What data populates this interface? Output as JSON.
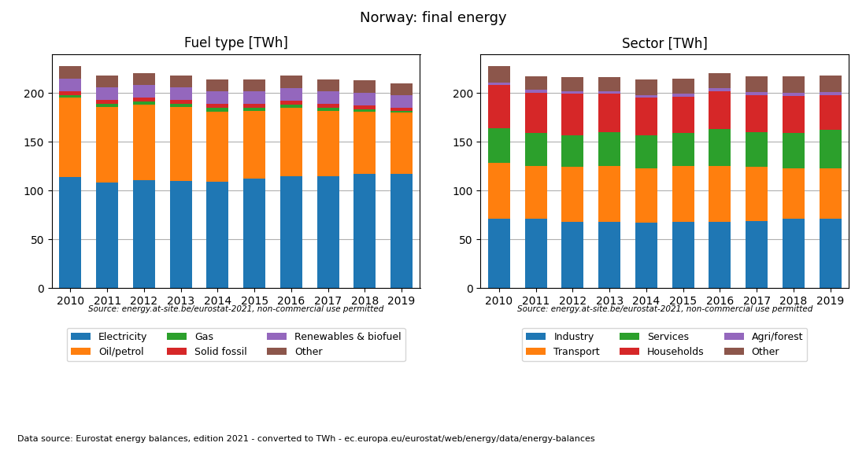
{
  "title": "Norway: final energy",
  "annotations": [
    "Data source: Eurostat energy balances, edition 2021 - converted to TWh - ec.europa.eu/eurostat/web/energy/data/energy-balances"
  ],
  "chart_data": [
    {
      "type": "bar",
      "stacked": true,
      "title": "Fuel type [TWh]",
      "categories": [
        "2010",
        "2011",
        "2012",
        "2013",
        "2014",
        "2015",
        "2016",
        "2017",
        "2018",
        "2019"
      ],
      "series": [
        {
          "name": "Electricity",
          "color": "#1f77b4",
          "values": [
            114,
            108,
            111,
            110,
            109,
            112,
            115,
            115,
            117,
            117
          ]
        },
        {
          "name": "Oil/petrol",
          "color": "#ff7f0e",
          "values": [
            81,
            78,
            77,
            76,
            72,
            70,
            70,
            67,
            64,
            63
          ]
        },
        {
          "name": "Gas",
          "color": "#2ca02c",
          "values": [
            3,
            3,
            3,
            3,
            4,
            3,
            3,
            3,
            2,
            2
          ]
        },
        {
          "name": "Solid fossil",
          "color": "#d62728",
          "values": [
            4,
            4,
            4,
            4,
            4,
            4,
            4,
            4,
            4,
            3
          ]
        },
        {
          "name": "Renewables & biofuel",
          "color": "#9467bd",
          "values": [
            13,
            13,
            13,
            13,
            13,
            13,
            13,
            13,
            13,
            13
          ]
        },
        {
          "name": "Other",
          "color": "#8c564b",
          "values": [
            13,
            12,
            12,
            12,
            12,
            12,
            13,
            12,
            13,
            12
          ]
        }
      ],
      "ylim": [
        0,
        240
      ],
      "yticks": [
        0,
        50,
        100,
        150,
        200
      ],
      "grid": true,
      "legend": "upper center",
      "annotations": [
        "Source: energy.at-site.be/eurostat-2021, non-commercial use permitted"
      ]
    },
    {
      "type": "bar",
      "stacked": true,
      "title": "Sector [TWh]",
      "categories": [
        "2010",
        "2011",
        "2012",
        "2013",
        "2014",
        "2015",
        "2016",
        "2017",
        "2018",
        "2019"
      ],
      "series": [
        {
          "name": "Industry",
          "color": "#1f77b4",
          "values": [
            71,
            71,
            68,
            68,
            67,
            68,
            68,
            69,
            71,
            71
          ]
        },
        {
          "name": "Transport",
          "color": "#ff7f0e",
          "values": [
            57,
            54,
            56,
            57,
            56,
            57,
            57,
            55,
            52,
            52
          ]
        },
        {
          "name": "Services",
          "color": "#2ca02c",
          "values": [
            36,
            34,
            33,
            35,
            34,
            34,
            38,
            36,
            36,
            39
          ]
        },
        {
          "name": "Households",
          "color": "#d62728",
          "values": [
            44,
            41,
            42,
            39,
            38,
            37,
            39,
            38,
            38,
            36
          ]
        },
        {
          "name": "Agri/forest",
          "color": "#9467bd",
          "values": [
            3,
            3,
            3,
            3,
            3,
            3,
            3,
            3,
            3,
            3
          ]
        },
        {
          "name": "Other",
          "color": "#8c564b",
          "values": [
            17,
            14,
            14,
            14,
            16,
            16,
            15,
            16,
            17,
            17
          ]
        }
      ],
      "ylim": [
        0,
        240
      ],
      "yticks": [
        0,
        50,
        100,
        150,
        200
      ],
      "grid": true,
      "legend": "upper center",
      "annotations": [
        "Source: energy.at-site.be/eurostat-2021, non-commercial use permitted"
      ]
    }
  ]
}
